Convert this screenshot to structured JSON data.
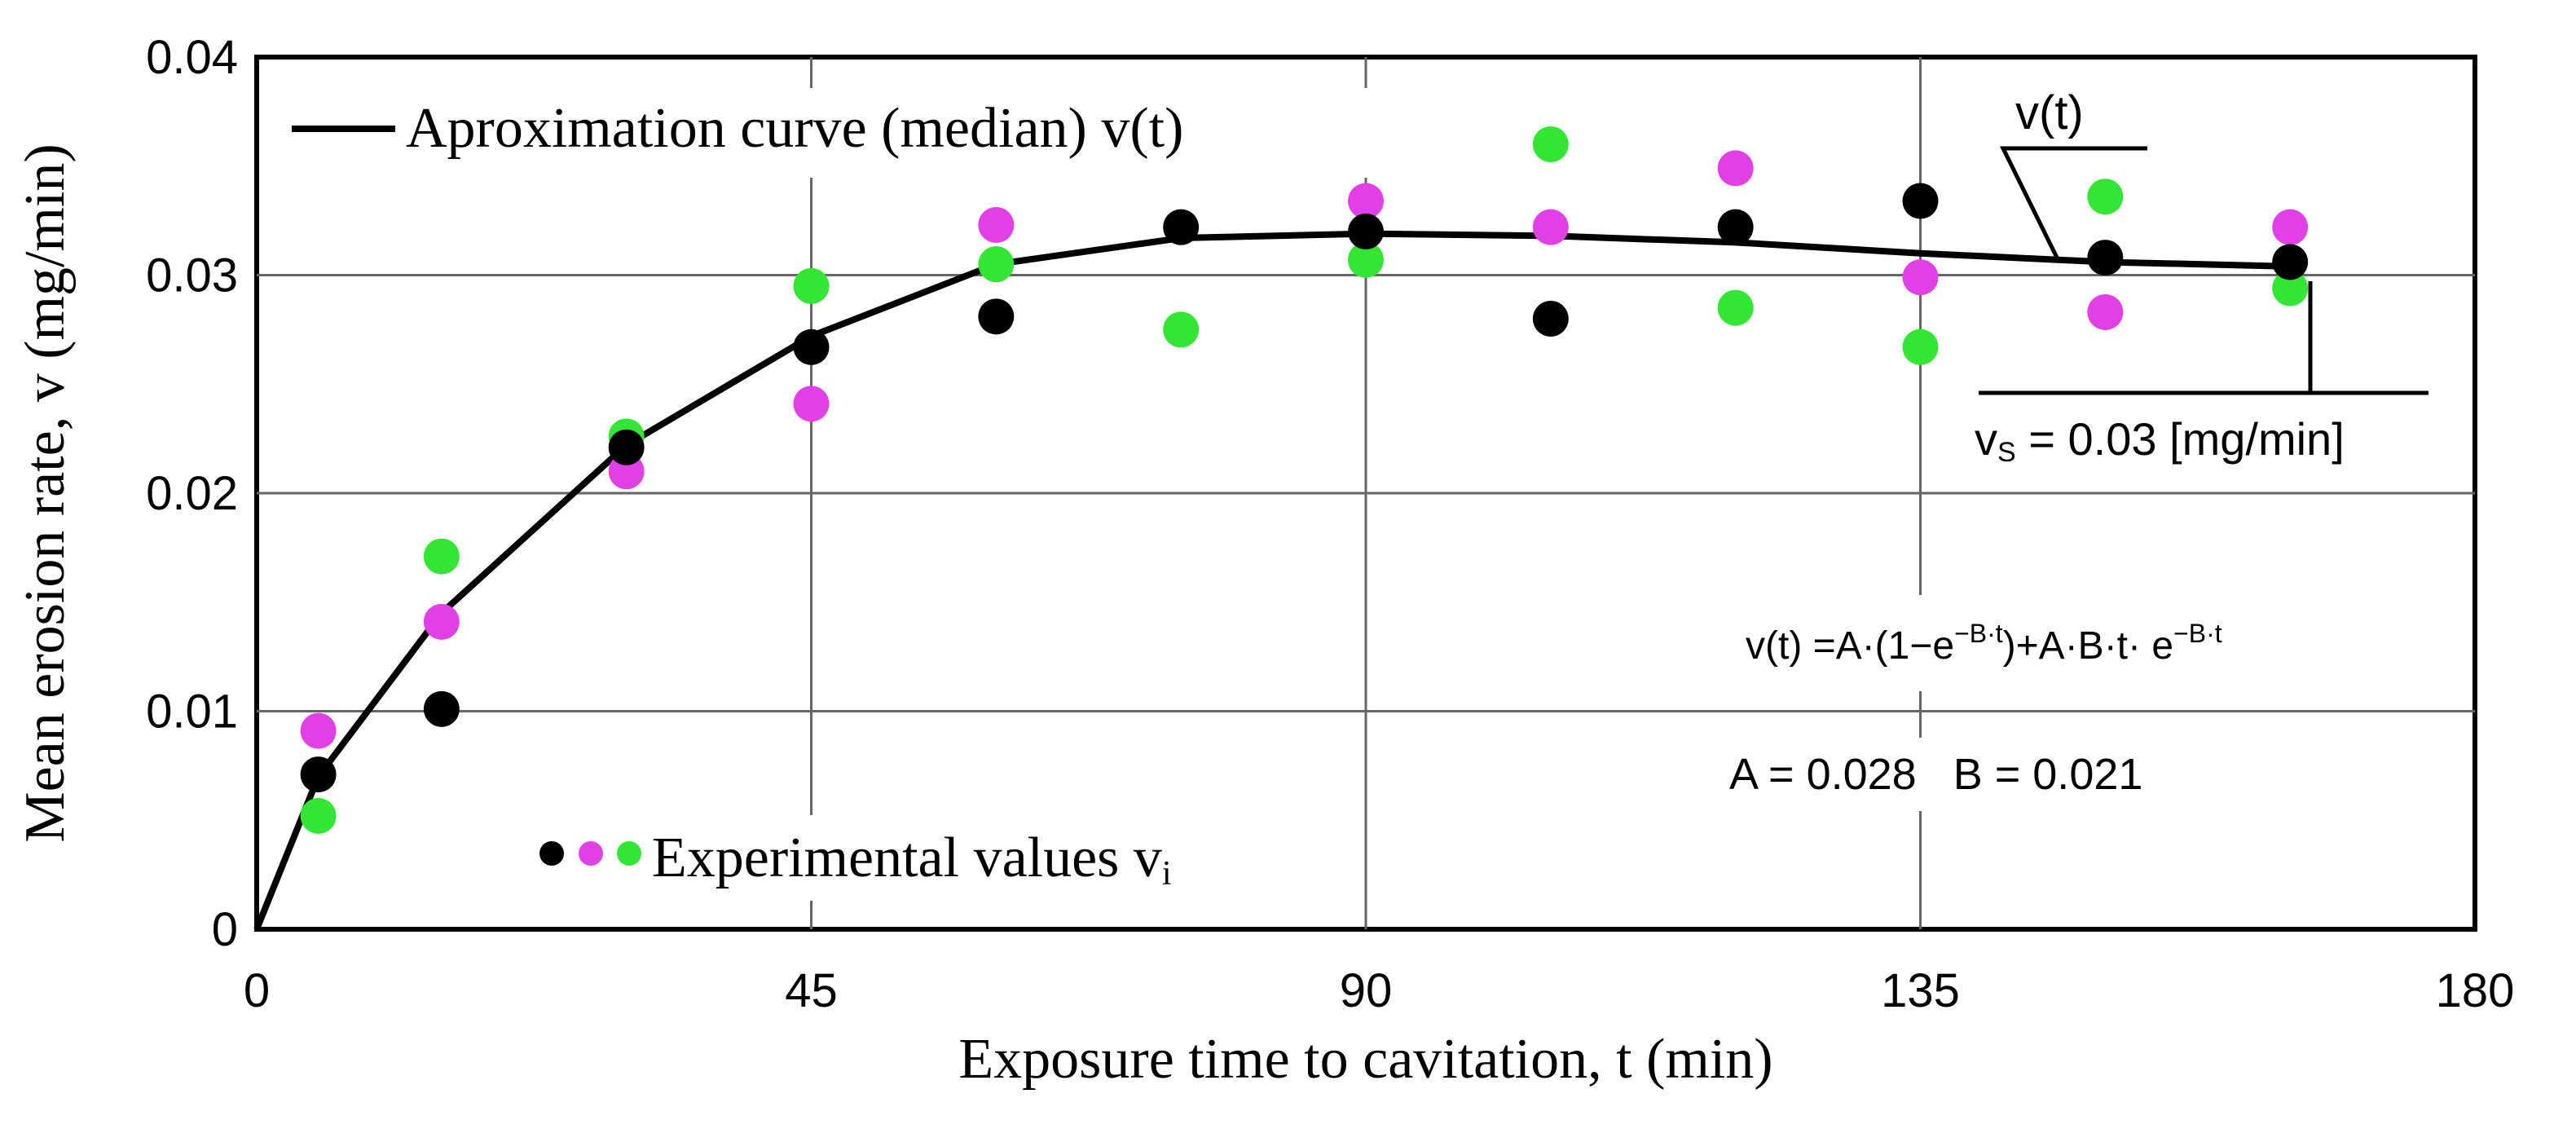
{
  "chart_data": {
    "type": "scatter",
    "xlabel": "Exposure time  to cavitation, t (min)",
    "ylabel": "Mean erosion rate, v (mg/min)",
    "xlim": [
      0,
      180
    ],
    "ylim": [
      0,
      0.04
    ],
    "x_ticks": [
      0,
      45,
      90,
      135,
      180
    ],
    "x_tick_labels": [
      "0",
      "45",
      "90",
      "135",
      "180"
    ],
    "y_ticks": [
      0,
      0.01,
      0.02,
      0.03,
      0.04
    ],
    "y_tick_labels": [
      "0",
      "0.01",
      "0.02",
      "0.03",
      "0.04"
    ],
    "grid": true,
    "legend": {
      "curve_label": "Aproximation curve (median) v(t)",
      "points_label_main": "Experimental values v",
      "points_label_sub": "i",
      "curve_position": "top-left",
      "points_position": "bottom-left"
    },
    "series": [
      {
        "name": "Aproximation curve (median) v(t)",
        "kind": "line",
        "color": "#000000",
        "x": [
          0,
          5,
          15,
          30,
          45,
          60,
          75,
          90,
          105,
          120,
          135,
          150,
          165
        ],
        "y": [
          0,
          0.007,
          0.0145,
          0.0222,
          0.0272,
          0.0305,
          0.0317,
          0.0319,
          0.0318,
          0.0315,
          0.031,
          0.0306,
          0.0304
        ]
      },
      {
        "name": "Experimental values (black)",
        "kind": "scatter",
        "color": "#000000",
        "x": [
          5,
          15,
          30,
          45,
          60,
          75,
          90,
          105,
          120,
          135,
          150,
          165
        ],
        "y": [
          0.0071,
          0.0101,
          0.0221,
          0.0267,
          0.0281,
          0.0322,
          0.032,
          0.028,
          0.0322,
          0.0334,
          0.0308,
          0.0306
        ]
      },
      {
        "name": "Experimental values (magenta)",
        "kind": "scatter",
        "color": "#e040e6",
        "x": [
          5,
          15,
          30,
          45,
          60,
          90,
          105,
          120,
          135,
          150,
          165
        ],
        "y": [
          0.0091,
          0.0141,
          0.021,
          0.0241,
          0.0323,
          0.0334,
          0.0322,
          0.0349,
          0.0299,
          0.0283,
          0.0322
        ]
      },
      {
        "name": "Experimental values (green)",
        "kind": "scatter",
        "color": "#33e633",
        "x": [
          5,
          15,
          30,
          45,
          60,
          75,
          90,
          105,
          120,
          135,
          150,
          165
        ],
        "y": [
          0.0052,
          0.0171,
          0.0226,
          0.0295,
          0.0305,
          0.0275,
          0.0307,
          0.036,
          0.0285,
          0.0267,
          0.0336,
          0.0294
        ]
      }
    ],
    "annotations": {
      "curve_pointer_label": "v(t)",
      "steady_state_label_main": "v",
      "steady_state_label_sub": "S",
      "steady_state_label_rest": " = 0.03 [mg/min]",
      "formula_part1": "v(t) =A·(1−e",
      "formula_exp1": "−B·t",
      "formula_part2": ")+A·B·t· e",
      "formula_exp2": "−B·t",
      "params": "A = 0.028   B = 0.021"
    }
  }
}
